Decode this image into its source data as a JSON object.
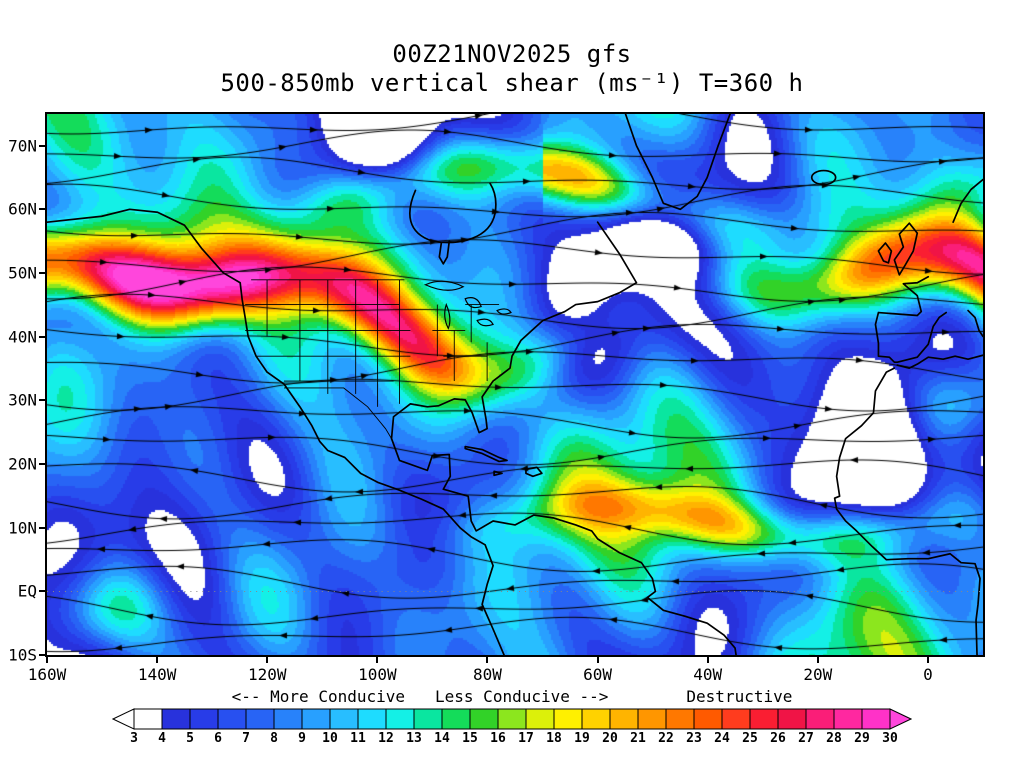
{
  "title": {
    "line1": "00Z21NOV2025 gfs",
    "line2": "500-850mb vertical shear (ms⁻¹) T=360 h"
  },
  "chart_data": {
    "type": "heatmap",
    "title": "00Z21NOV2025 gfs",
    "subtitle": "500-850mb vertical shear (ms⁻¹) T=360 h",
    "model": "gfs",
    "init_time": "00Z21NOV2025",
    "forecast_hour_label": "T=360 h",
    "variable": "500-850mb vertical shear",
    "units": "ms⁻¹",
    "background": "#FFFFFF",
    "x_axis": {
      "labels": [
        "160W",
        "140W",
        "120W",
        "100W",
        "80W",
        "60W",
        "40W",
        "20W",
        "0"
      ],
      "lons": [
        -160,
        -140,
        -120,
        -100,
        -80,
        -60,
        -40,
        -20,
        0
      ]
    },
    "y_axis": {
      "labels": [
        "70N",
        "60N",
        "50N",
        "40N",
        "30N",
        "20N",
        "10N",
        "EQ",
        "10S"
      ],
      "lats": [
        70,
        60,
        50,
        40,
        30,
        20,
        10,
        0,
        -10
      ]
    },
    "extent": {
      "lon_min": -160,
      "lon_max": 10,
      "lat_min": -10,
      "lat_max": 75
    },
    "colorbar": {
      "levels": [
        3,
        4,
        5,
        6,
        7,
        8,
        9,
        10,
        11,
        12,
        13,
        14,
        15,
        16,
        17,
        18,
        19,
        20,
        21,
        22,
        23,
        24,
        25,
        26,
        27,
        28,
        29,
        30
      ],
      "segment_colors": [
        "#FFFFFF",
        "#2832DC",
        "#283CE8",
        "#2850F0",
        "#2864F5",
        "#2882FA",
        "#28A0FF",
        "#28BEFF",
        "#1EDCFF",
        "#14F0E6",
        "#0AE6A0",
        "#14DC5A",
        "#32D228",
        "#8CE61E",
        "#DCF00A",
        "#FFF000",
        "#FFD200",
        "#FFB400",
        "#FF9600",
        "#FF7800",
        "#FF5A00",
        "#FF3C1E",
        "#FA1E32",
        "#F01446",
        "#FA1E78",
        "#FF28A0",
        "#FF32C8"
      ],
      "under_color": "#FFFFFF",
      "over_color": "#FF46DC",
      "annotations": {
        "left": "<-- More Conducive",
        "middle": "Less Conducive -->",
        "right": "Destructive"
      }
    }
  }
}
